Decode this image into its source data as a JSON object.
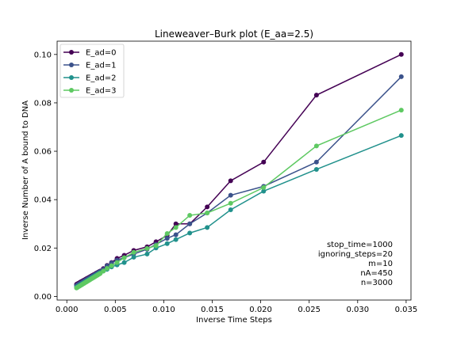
{
  "chart_data": {
    "type": "line",
    "title": "Lineweaver–Burk plot (E_aa=2.5)",
    "xlabel": "Inverse Time Steps",
    "ylabel": "Inverse Number of A bound to DNA",
    "xlim": [
      -0.001,
      0.0355
    ],
    "ylim": [
      -0.0015,
      0.1055
    ],
    "xticks": [
      0.0,
      0.005,
      0.01,
      0.015,
      0.02,
      0.025,
      0.03,
      0.035
    ],
    "xtick_labels": [
      "0.000",
      "0.005",
      "0.010",
      "0.015",
      "0.020",
      "0.025",
      "0.030",
      "0.035"
    ],
    "yticks": [
      0.0,
      0.02,
      0.04,
      0.06,
      0.08,
      0.1
    ],
    "ytick_labels": [
      "0.00",
      "0.02",
      "0.04",
      "0.06",
      "0.08",
      "0.10"
    ],
    "grid": false,
    "legend_position": "top-left",
    "annotations": [
      "stop_time=1000",
      "ignoring_steps=20",
      "m=10",
      "nA=450",
      "n=3000"
    ],
    "series": [
      {
        "name": "E_ad=0",
        "color": "#440154",
        "x": [
          0.00345,
          0.00377,
          0.00415,
          0.00461,
          0.00518,
          0.00592,
          0.0069,
          0.00828,
          0.0092,
          0.01035,
          0.01125,
          0.01268,
          0.01448,
          0.0169,
          0.0203,
          0.02575,
          0.0345
        ],
        "y": [
          0.0105,
          0.0115,
          0.0128,
          0.014,
          0.0157,
          0.017,
          0.019,
          0.0205,
          0.0226,
          0.0252,
          0.03,
          0.03,
          0.037,
          0.0478,
          0.0555,
          0.0832,
          0.1
        ]
      },
      {
        "name": "E_ad=1",
        "color": "#3b528b",
        "x": [
          0.00345,
          0.00377,
          0.00415,
          0.00461,
          0.00518,
          0.00592,
          0.0069,
          0.00828,
          0.0092,
          0.01035,
          0.01125,
          0.01268,
          0.01448,
          0.0169,
          0.0203,
          0.02575,
          0.0345
        ],
        "y": [
          0.0103,
          0.0112,
          0.0126,
          0.0138,
          0.015,
          0.016,
          0.0175,
          0.0195,
          0.0215,
          0.024,
          0.0255,
          0.03,
          0.0345,
          0.0418,
          0.0455,
          0.0555,
          0.0908
        ]
      },
      {
        "name": "E_ad=2",
        "color": "#21918c",
        "x": [
          0.00345,
          0.00377,
          0.00415,
          0.00461,
          0.00518,
          0.00592,
          0.0069,
          0.00828,
          0.0092,
          0.01035,
          0.01125,
          0.01268,
          0.01448,
          0.0169,
          0.0203,
          0.02575,
          0.0345
        ],
        "y": [
          0.0098,
          0.0105,
          0.0112,
          0.0122,
          0.013,
          0.014,
          0.0162,
          0.0175,
          0.02,
          0.0218,
          0.0235,
          0.0262,
          0.0285,
          0.0358,
          0.0435,
          0.0525,
          0.0665
        ]
      },
      {
        "name": "E_ad=3",
        "color": "#5ec962",
        "x": [
          0.00345,
          0.00377,
          0.00415,
          0.00461,
          0.00518,
          0.00592,
          0.0069,
          0.00828,
          0.0092,
          0.01035,
          0.01125,
          0.01268,
          0.01448,
          0.0169,
          0.0203,
          0.02575,
          0.0345
        ],
        "y": [
          0.0095,
          0.0105,
          0.0116,
          0.0127,
          0.014,
          0.016,
          0.0182,
          0.0198,
          0.021,
          0.026,
          0.0285,
          0.0335,
          0.0345,
          0.0385,
          0.045,
          0.0622,
          0.077
        ]
      }
    ],
    "dense_region": {
      "x_start": 0.001,
      "x_end": 0.00345,
      "y_start": [
        0.005,
        0.0045,
        0.0038,
        0.0035
      ],
      "y_end": [
        0.0105,
        0.0103,
        0.0098,
        0.0095
      ],
      "count": 26
    }
  }
}
